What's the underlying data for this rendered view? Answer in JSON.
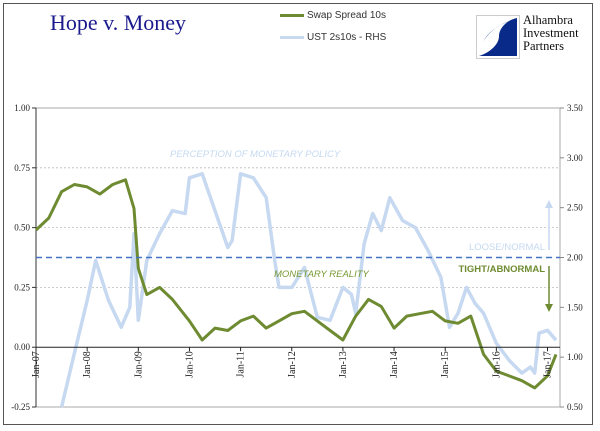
{
  "chart_data": {
    "type": "line",
    "title": "Hope v. Money",
    "legend_placement": "top-center",
    "grid": true,
    "x_tick_labels": [
      "Jan-07",
      "Jan-08",
      "Jan-09",
      "Jan-10",
      "Jan-11",
      "Jan-12",
      "Jan-13",
      "Jan-14",
      "Jan-15",
      "Jan-16",
      "Jan-17"
    ],
    "y_left": {
      "ylim": [
        -0.25,
        1.0
      ],
      "tick_labels": [
        "1.00",
        "0.75",
        "0.50",
        "0.25",
        "0.00",
        "-0.25"
      ]
    },
    "y_right": {
      "ylim": [
        0.5,
        3.5
      ],
      "tick_labels": [
        "3.50",
        "3.00",
        "2.50",
        "2.00",
        "1.50",
        "1.00",
        "0.50"
      ]
    },
    "series": [
      {
        "name": "Swap Spread 10s",
        "axis": "left",
        "color": "#6e8b32",
        "x": [
          "2007-01",
          "2007-04",
          "2007-07",
          "2007-10",
          "2008-01",
          "2008-04",
          "2008-07",
          "2008-10",
          "2008-12",
          "2009-01",
          "2009-03",
          "2009-06",
          "2009-09",
          "2010-01",
          "2010-04",
          "2010-07",
          "2010-10",
          "2011-01",
          "2011-04",
          "2011-07",
          "2011-10",
          "2012-01",
          "2012-04",
          "2012-07",
          "2012-10",
          "2013-01",
          "2013-04",
          "2013-07",
          "2013-10",
          "2014-01",
          "2014-04",
          "2014-07",
          "2014-10",
          "2015-01",
          "2015-04",
          "2015-07",
          "2015-10",
          "2016-01",
          "2016-04",
          "2016-07",
          "2016-10",
          "2017-01",
          "2017-03"
        ],
        "y": [
          0.49,
          0.54,
          0.65,
          0.68,
          0.67,
          0.64,
          0.68,
          0.7,
          0.58,
          0.33,
          0.22,
          0.25,
          0.2,
          0.11,
          0.03,
          0.08,
          0.07,
          0.11,
          0.13,
          0.08,
          0.11,
          0.14,
          0.15,
          0.11,
          0.07,
          0.03,
          0.13,
          0.2,
          0.17,
          0.08,
          0.13,
          0.14,
          0.15,
          0.11,
          0.1,
          0.13,
          -0.03,
          -0.1,
          -0.12,
          -0.14,
          -0.17,
          -0.12,
          -0.03
        ]
      },
      {
        "name": "UST 2s10s - RHS",
        "axis": "right",
        "color": "#c6d9f1",
        "x": [
          "2007-07",
          "2007-10",
          "2008-01",
          "2008-03",
          "2008-06",
          "2008-09",
          "2008-11",
          "2008-12",
          "2009-01",
          "2009-03",
          "2009-06",
          "2009-09",
          "2009-12",
          "2010-01",
          "2010-04",
          "2010-07",
          "2010-10",
          "2010-11",
          "2011-01",
          "2011-04",
          "2011-07",
          "2011-09",
          "2011-10",
          "2012-01",
          "2012-04",
          "2012-07",
          "2012-10",
          "2013-01",
          "2013-03",
          "2013-04",
          "2013-06",
          "2013-08",
          "2013-10",
          "2013-12",
          "2014-03",
          "2014-06",
          "2014-09",
          "2014-12",
          "2015-02",
          "2015-04",
          "2015-06",
          "2015-08",
          "2015-10",
          "2016-01",
          "2016-04",
          "2016-07",
          "2016-09",
          "2016-10",
          "2016-11",
          "2017-01",
          "2017-03"
        ],
        "y": [
          0.5,
          1.04,
          1.57,
          1.97,
          1.57,
          1.3,
          1.5,
          2.24,
          1.37,
          1.97,
          2.24,
          2.47,
          2.44,
          2.8,
          2.84,
          2.47,
          2.1,
          2.17,
          2.84,
          2.8,
          2.6,
          1.97,
          1.7,
          1.7,
          1.9,
          1.4,
          1.37,
          1.7,
          1.63,
          1.44,
          2.14,
          2.44,
          2.27,
          2.6,
          2.37,
          2.3,
          2.07,
          1.8,
          1.3,
          1.44,
          1.7,
          1.54,
          1.44,
          1.14,
          0.97,
          0.84,
          0.9,
          0.84,
          1.24,
          1.27,
          1.17
        ]
      }
    ],
    "reference_line": {
      "axis": "right",
      "value": 2.0,
      "color": "#4472c4"
    },
    "annotations": {
      "perception": "PERCEPTION OF MONETARY POLICY",
      "reality": "MONETARY REALITY",
      "loose": "LOOSE/NORMAL",
      "tight": "TIGHT/ABNORMAL"
    }
  },
  "logo": {
    "text_lines": [
      "Alhambra",
      "Investment",
      "Partners"
    ],
    "color": "#0a2a8a"
  }
}
